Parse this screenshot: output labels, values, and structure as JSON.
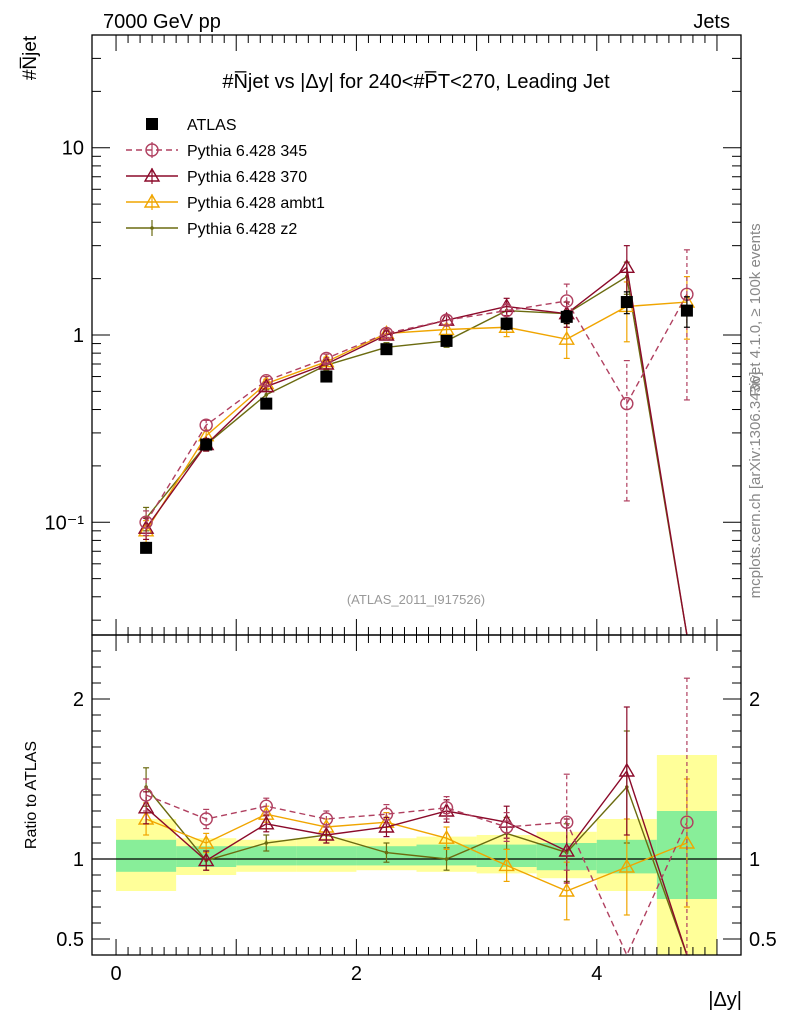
{
  "header": {
    "left": "7000 GeV pp",
    "right": "Jets"
  },
  "side_labels": {
    "rivet": "Rivet 4.1.0, ≥ 100k events",
    "mcplots": "mcplots.cern.ch [arXiv:1306.3436]"
  },
  "chart_data": [
    {
      "type": "line",
      "panel": "main",
      "title": "#N̅jet vs |Δy| for 240<#P̅T<270, Leading Jet",
      "ylabel": "#N̅jet",
      "yscale": "log",
      "ylim": [
        0.025,
        40
      ],
      "xlim": [
        -0.2,
        5.2
      ],
      "y_tick_labels": [
        "10⁻¹",
        "1",
        "10"
      ],
      "analysis_label": "(ATLAS_2011_I917526)",
      "x": [
        0.25,
        0.75,
        1.25,
        1.75,
        2.25,
        2.75,
        3.25,
        3.75,
        4.25,
        4.75
      ],
      "series": [
        {
          "name": "ATLAS",
          "color": "#000000",
          "marker": "square",
          "values": [
            0.073,
            0.26,
            0.43,
            0.6,
            0.84,
            0.93,
            1.15,
            1.25,
            1.5,
            1.35
          ],
          "errors": [
            0.003,
            0.01,
            0.02,
            0.03,
            0.04,
            0.05,
            0.08,
            0.1,
            0.2,
            0.25
          ]
        },
        {
          "name": "Pythia 6.428 345",
          "color": "#b04060",
          "marker": "circle",
          "dashed": true,
          "values": [
            0.1,
            0.33,
            0.57,
            0.75,
            1.02,
            1.2,
            1.35,
            1.52,
            0.43,
            1.65
          ],
          "errors": [
            0.015,
            0.02,
            0.03,
            0.04,
            0.05,
            0.07,
            0.12,
            0.35,
            0.3,
            1.2
          ]
        },
        {
          "name": "Pythia 6.428 370",
          "color": "#8b0a2a",
          "marker": "triangle",
          "values": [
            0.093,
            0.26,
            0.53,
            0.7,
            1.0,
            1.2,
            1.42,
            1.3,
            2.3,
            0.0001
          ],
          "errors": [
            0.012,
            0.02,
            0.03,
            0.04,
            0.05,
            0.07,
            0.15,
            0.2,
            0.7,
            0
          ]
        },
        {
          "name": "Pythia 6.428 ambt1",
          "color": "#f0a500",
          "marker": "triangle",
          "values": [
            0.09,
            0.29,
            0.55,
            0.72,
            1.02,
            1.07,
            1.1,
            0.95,
            1.42,
            1.5
          ],
          "errors": [
            0.012,
            0.02,
            0.03,
            0.04,
            0.05,
            0.07,
            0.12,
            0.2,
            0.5,
            0.55
          ]
        },
        {
          "name": "Pythia 6.428 z2",
          "color": "#6b6b10",
          "marker": "dot",
          "values": [
            0.105,
            0.26,
            0.48,
            0.69,
            0.86,
            0.93,
            1.35,
            1.3,
            2.05,
            0.0001
          ],
          "errors": [
            0.015,
            0.02,
            0.03,
            0.04,
            0.05,
            0.07,
            0.12,
            0.2,
            0.4,
            0
          ]
        }
      ]
    },
    {
      "type": "line",
      "panel": "ratio",
      "ylabel": "Ratio to ATLAS",
      "ylim": [
        0.4,
        2.4
      ],
      "xlim": [
        -0.2,
        5.2
      ],
      "xlabel": "|Δy|",
      "x_tick_labels": [
        "0",
        "2",
        "4"
      ],
      "y_tick_labels": [
        "0.5",
        "1",
        "2"
      ],
      "band_edges": [
        0,
        0.5,
        1.0,
        1.5,
        2.0,
        2.5,
        3.0,
        3.5,
        4.0,
        4.5,
        5.0
      ],
      "band_inner": [
        [
          0.92,
          1.12
        ],
        [
          0.95,
          1.08
        ],
        [
          0.96,
          1.08
        ],
        [
          0.96,
          1.08
        ],
        [
          0.96,
          1.08
        ],
        [
          0.96,
          1.09
        ],
        [
          0.95,
          1.09
        ],
        [
          0.93,
          1.1
        ],
        [
          0.91,
          1.12
        ],
        [
          0.75,
          1.3
        ]
      ],
      "band_outer": [
        [
          0.8,
          1.25
        ],
        [
          0.9,
          1.13
        ],
        [
          0.92,
          1.12
        ],
        [
          0.92,
          1.13
        ],
        [
          0.93,
          1.13
        ],
        [
          0.92,
          1.14
        ],
        [
          0.91,
          1.15
        ],
        [
          0.88,
          1.17
        ],
        [
          0.8,
          1.25
        ],
        [
          0.4,
          1.65
        ]
      ],
      "x": [
        0.25,
        0.75,
        1.25,
        1.75,
        2.25,
        2.75,
        3.25,
        3.75,
        4.25,
        4.75
      ],
      "series": [
        {
          "name": "Pythia 6.428 345",
          "color": "#b04060",
          "marker": "circle",
          "dashed": true,
          "values": [
            1.4,
            1.25,
            1.33,
            1.25,
            1.28,
            1.32,
            1.2,
            1.23,
            0.28,
            1.23
          ],
          "errors": [
            0.1,
            0.06,
            0.05,
            0.05,
            0.06,
            0.07,
            0.09,
            0.3,
            0.2,
            0.9
          ]
        },
        {
          "name": "Pythia 6.428 370",
          "color": "#8b0a2a",
          "marker": "triangle",
          "values": [
            1.32,
            0.99,
            1.22,
            1.15,
            1.2,
            1.3,
            1.23,
            1.05,
            1.55,
            0.2
          ],
          "errors": [
            0.1,
            0.06,
            0.05,
            0.05,
            0.06,
            0.07,
            0.1,
            0.2,
            0.4,
            0
          ]
        },
        {
          "name": "Pythia 6.428 ambt1",
          "color": "#f0a500",
          "marker": "triangle",
          "values": [
            1.25,
            1.1,
            1.28,
            1.2,
            1.23,
            1.13,
            0.96,
            0.8,
            0.95,
            1.1
          ],
          "errors": [
            0.1,
            0.06,
            0.05,
            0.05,
            0.06,
            0.07,
            0.1,
            0.18,
            0.3,
            0.4
          ]
        },
        {
          "name": "Pythia 6.428 z2",
          "color": "#6b6b10",
          "marker": "dot",
          "values": [
            1.45,
            0.99,
            1.1,
            1.15,
            1.04,
            1.0,
            1.16,
            1.04,
            1.45,
            0.2
          ],
          "errors": [
            0.12,
            0.06,
            0.05,
            0.05,
            0.06,
            0.07,
            0.1,
            0.18,
            0.35,
            0
          ]
        }
      ]
    }
  ]
}
